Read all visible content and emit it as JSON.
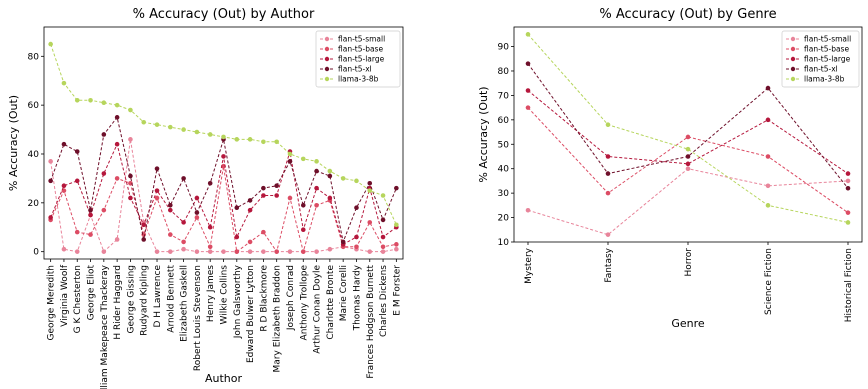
{
  "colors": {
    "flan-t5-small": "#e8849a",
    "flan-t5-base": "#dc4c64",
    "flan-t5-large": "#b5173c",
    "flan-t5-xl": "#6e0f2a",
    "llama-3-8b": "#b6d55c"
  },
  "chart_data": [
    {
      "type": "line",
      "title": "% Accuracy (Out) by Author",
      "xlabel": "Author",
      "ylabel": "% Accuracy (Out)",
      "ylim": [
        -3,
        92
      ],
      "yticks": [
        0,
        20,
        40,
        60,
        80
      ],
      "grid": false,
      "legend_position": "top-right",
      "categories": [
        "George Meredith",
        "Virginia Woolf",
        "G K Chesterton",
        "George Eliot",
        "William Makepeace Thackeray",
        "H Rider Haggard",
        "George Gissing",
        "Rudyard Kipling",
        "D H Lawrence",
        "Arnold Bennett",
        "Elizabeth Gaskell",
        "Robert Louis Stevenson",
        "Henry James",
        "Wilkie Collins",
        "John Galsworthy",
        "Edward Bulwer Lytton",
        "R D Blackmore",
        "Mary Elizabeth Braddon",
        "Joseph Conrad",
        "Anthony Trollope",
        "Arthur Conan Doyle",
        "Charlotte Bronte",
        "Marie Corelli",
        "Thomas Hardy",
        "Frances Hodgson Burnett",
        "Charles Dickens",
        "E M Forster"
      ],
      "series": [
        {
          "name": "flan-t5-small",
          "values": [
            37,
            1,
            0,
            15,
            0,
            5,
            46,
            12,
            0,
            0,
            1,
            0,
            0,
            0,
            0,
            0,
            0,
            0,
            0,
            0,
            0,
            1,
            2,
            1,
            0,
            0,
            1
          ]
        },
        {
          "name": "flan-t5-base",
          "values": [
            13,
            25,
            8,
            7,
            17,
            30,
            28,
            7,
            22,
            7,
            4,
            14,
            2,
            35,
            0,
            4,
            8,
            0,
            22,
            0,
            19,
            21,
            2,
            2,
            12,
            2,
            3
          ]
        },
        {
          "name": "flan-t5-large",
          "values": [
            14,
            27,
            29,
            15,
            32,
            44,
            22,
            11,
            25,
            17,
            12,
            22,
            10,
            39,
            6,
            17,
            23,
            23,
            41,
            9,
            26,
            22,
            3,
            6,
            26,
            6,
            10
          ]
        },
        {
          "name": "flan-t5-xl",
          "values": [
            29,
            44,
            41,
            17,
            48,
            55,
            31,
            5,
            34,
            19,
            30,
            16,
            28,
            46,
            18,
            21,
            26,
            27,
            37,
            19,
            33,
            31,
            4,
            18,
            28,
            13,
            26
          ]
        },
        {
          "name": "llama-3-8b",
          "values": [
            85,
            69,
            62,
            62,
            61,
            60,
            58,
            53,
            52,
            51,
            50,
            49,
            48,
            47,
            46,
            46,
            45,
            45,
            40,
            38,
            37,
            33,
            30,
            29,
            25,
            23,
            11
          ]
        }
      ]
    },
    {
      "type": "line",
      "title": "% Accuracy (Out) by Genre",
      "xlabel": "Genre",
      "ylabel": "% Accuracy (Out)",
      "ylim": [
        10,
        98
      ],
      "yticks": [
        10,
        20,
        30,
        40,
        50,
        60,
        70,
        80,
        90
      ],
      "grid": false,
      "legend_position": "top-right",
      "categories": [
        "Mystery",
        "Fantasy",
        "Horror",
        "Science Fiction",
        "Historical Fiction"
      ],
      "series": [
        {
          "name": "flan-t5-small",
          "values": [
            23,
            13,
            40,
            33,
            35
          ]
        },
        {
          "name": "flan-t5-base",
          "values": [
            65,
            30,
            53,
            45,
            22
          ]
        },
        {
          "name": "flan-t5-large",
          "values": [
            72,
            45,
            42,
            60,
            38
          ]
        },
        {
          "name": "flan-t5-xl",
          "values": [
            83,
            38,
            45,
            73,
            32
          ]
        },
        {
          "name": "llama-3-8b",
          "values": [
            95,
            58,
            48,
            25,
            18
          ]
        }
      ]
    }
  ]
}
